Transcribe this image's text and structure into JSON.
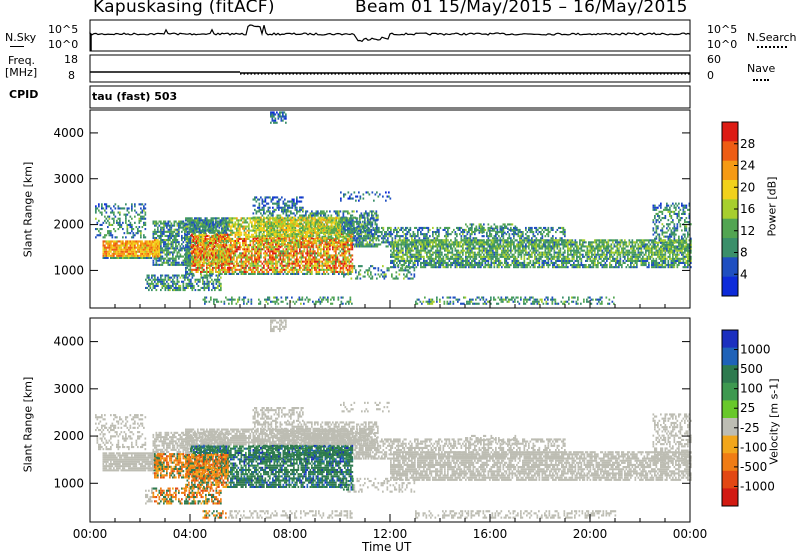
{
  "header": {
    "station": "Kapuskasing (fitACF)",
    "beam": "Beam 01",
    "dates": "15/May/2015 – 16/May/2015"
  },
  "status_strip": {
    "nsky_label": "N.Sky",
    "nsky_ticks": [
      "10^5",
      "10^0"
    ],
    "nsearch_label": "N.Search",
    "nsearch_ticks": [
      "10^5",
      "10^0"
    ],
    "freq_label": "Freq.",
    "freq_unit": "[MHz]",
    "freq_ticks": [
      "18",
      "8"
    ],
    "nave_label": "Nave",
    "nave_ticks": [
      "60",
      "0"
    ],
    "cpid_label": "CPID",
    "cpid_value": "tau (fast) 503"
  },
  "chart_data": [
    {
      "type": "heatmap",
      "name": "power-panel",
      "ylabel": "Slant Range [km]",
      "ylim": [
        180,
        4500
      ],
      "yticks": [
        "1000",
        "2000",
        "3000",
        "4000"
      ],
      "xticks": [
        "00:00",
        "04:00",
        "08:00",
        "12:00",
        "16:00",
        "20:00",
        "00:00"
      ],
      "colorbar": {
        "label": "Power [dB]",
        "ticks": [
          "4",
          "8",
          "12",
          "16",
          "20",
          "24",
          "28"
        ],
        "colors": [
          "#0d2bd9",
          "#1f4fc0",
          "#3a8f6a",
          "#52a552",
          "#a7cf2e",
          "#f2d11b",
          "#f59a14",
          "#ee5c14",
          "#dc1b13"
        ]
      }
    },
    {
      "type": "heatmap",
      "name": "velocity-panel",
      "ylabel": "Slant Range [km]",
      "ylim": [
        180,
        4500
      ],
      "yticks": [
        "1000",
        "2000",
        "3000",
        "4000"
      ],
      "xticks": [
        "00:00",
        "04:00",
        "08:00",
        "12:00",
        "16:00",
        "20:00",
        "00:00"
      ],
      "xlabel": "Time UT",
      "colorbar": {
        "label": "Velocity [m s-1]",
        "ticks": [
          "1000",
          "500",
          "100",
          "25",
          "-25",
          "-100",
          "-500",
          "-1000"
        ],
        "colors": [
          "#1b2fbf",
          "#1f62b8",
          "#2e7a4f",
          "#3e9950",
          "#68c82a",
          "#bdbdb3",
          "#f2a61b",
          "#f07c14",
          "#e24713",
          "#d21a12"
        ]
      }
    }
  ]
}
